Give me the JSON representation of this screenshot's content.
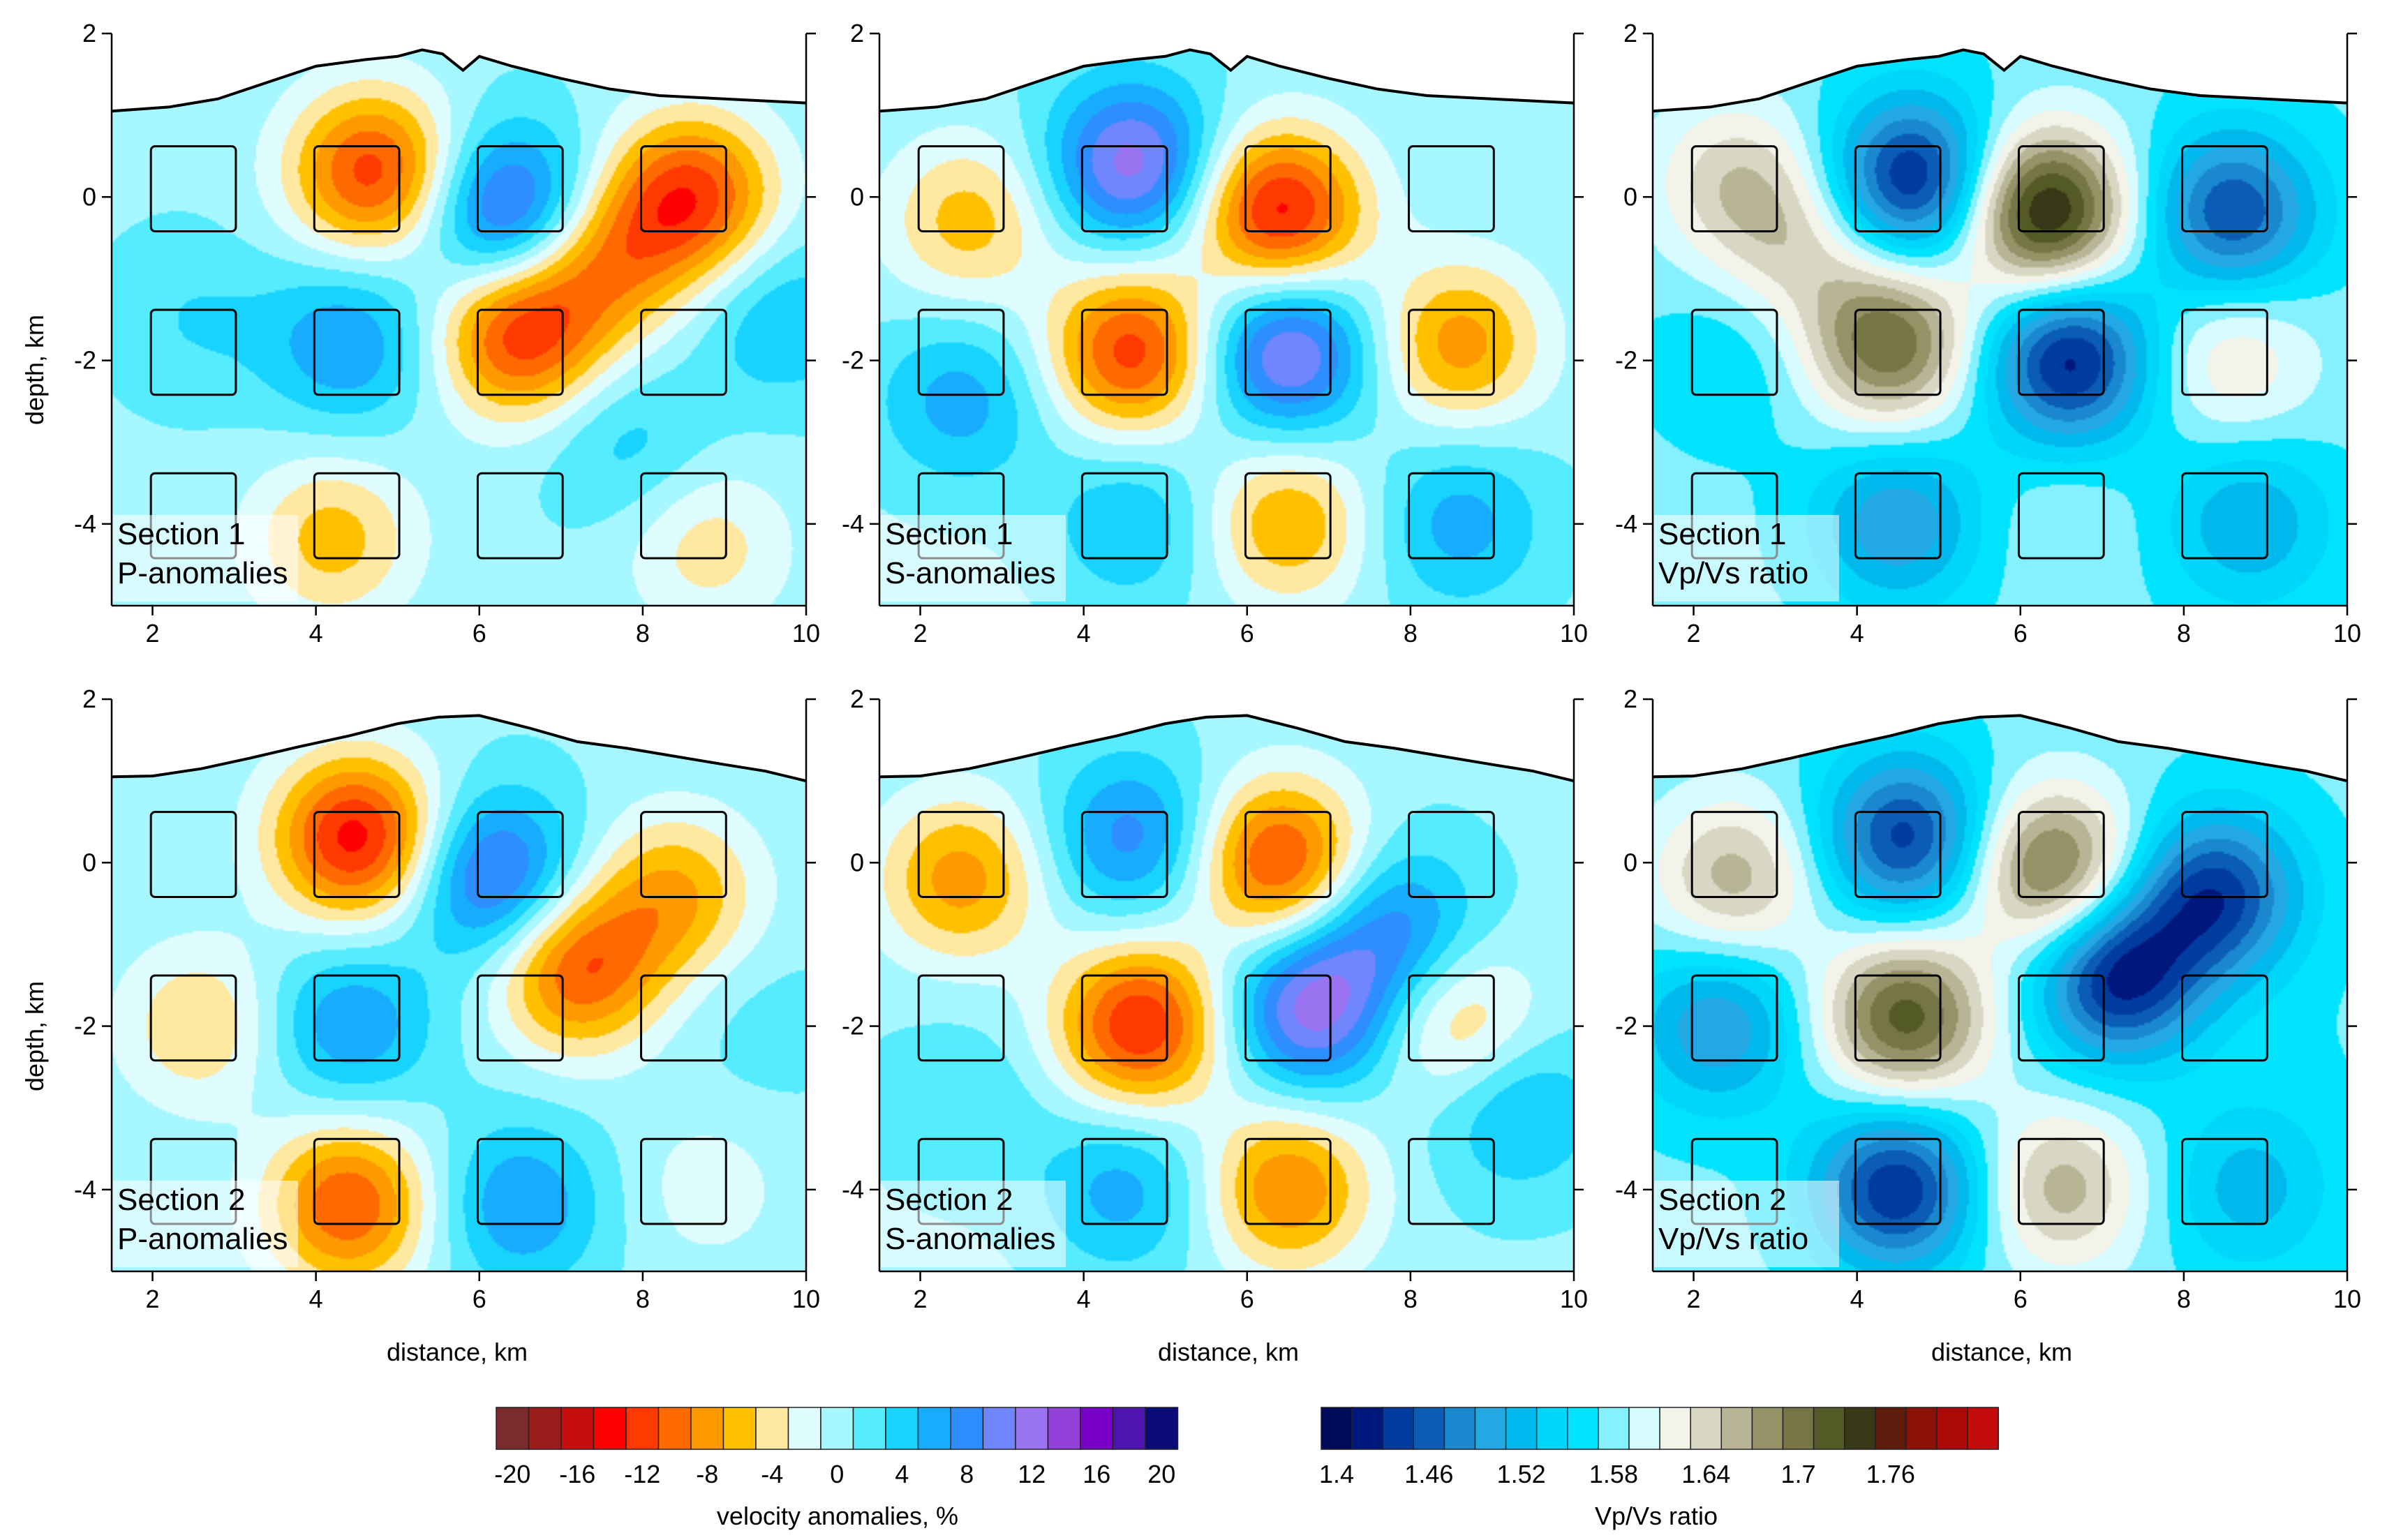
{
  "chart_data": [
    {
      "type": "heatmap",
      "title_lines": [
        "Section 1",
        "P-anomalies"
      ],
      "variable": "velocity anomalies, %",
      "xlabel": "",
      "ylabel": "depth, km",
      "xlim": [
        1.5,
        10
      ],
      "ylim": [
        -5,
        2
      ],
      "xticks": [
        2,
        4,
        6,
        8,
        10
      ],
      "yticks": [
        2,
        0,
        -2,
        -4
      ],
      "anomalies": [
        {
          "x": 4.7,
          "y": 0.3,
          "v": -12
        },
        {
          "x": 6.4,
          "y": -0.2,
          "v": 12
        },
        {
          "x": 6.5,
          "y": -1.7,
          "v": -12
        },
        {
          "x": 8.6,
          "y": 0,
          "v": -12
        },
        {
          "x": 7.5,
          "y": -0.8,
          "v": -8
        },
        {
          "x": 4.4,
          "y": -1.8,
          "v": 7
        },
        {
          "x": 2.5,
          "y": -1.5,
          "v": 3
        },
        {
          "x": 4.2,
          "y": -4.2,
          "v": -6
        },
        {
          "x": 8.8,
          "y": -4.3,
          "v": -4
        },
        {
          "x": 9.7,
          "y": -1.5,
          "v": 5
        },
        {
          "x": 7.8,
          "y": -3,
          "v": 4
        }
      ]
    },
    {
      "type": "heatmap",
      "title_lines": [
        "Section 1",
        "S-anomalies"
      ],
      "variable": "velocity anomalies, %",
      "xlabel": "",
      "ylabel": "",
      "xlim": [
        1.5,
        10
      ],
      "ylim": [
        -5,
        2
      ],
      "xticks": [
        2,
        4,
        6,
        8,
        10
      ],
      "yticks": [
        2,
        0,
        -2,
        -4
      ],
      "anomalies": [
        {
          "x": 4.6,
          "y": 0.4,
          "v": 12
        },
        {
          "x": 6.4,
          "y": -0.2,
          "v": -14
        },
        {
          "x": 4.6,
          "y": -1.9,
          "v": -12
        },
        {
          "x": 6.5,
          "y": -1.9,
          "v": 12
        },
        {
          "x": 8.6,
          "y": -1.8,
          "v": -8
        },
        {
          "x": 2.6,
          "y": -0.3,
          "v": -6
        },
        {
          "x": 2.5,
          "y": -2.5,
          "v": 6
        },
        {
          "x": 6.5,
          "y": -4,
          "v": -7
        },
        {
          "x": 8.6,
          "y": -4,
          "v": 6
        },
        {
          "x": 4.6,
          "y": -4,
          "v": 5
        }
      ]
    },
    {
      "type": "heatmap",
      "title_lines": [
        "Section 1",
        "Vp/Vs ratio"
      ],
      "variable": "Vp/Vs ratio",
      "xlabel": "",
      "ylabel": "",
      "xlim": [
        1.5,
        10
      ],
      "ylim": [
        -5,
        2
      ],
      "xticks": [
        2,
        4,
        6,
        8,
        10
      ],
      "yticks": [
        2,
        0,
        -2,
        -4
      ],
      "anomalies": [
        {
          "x": 4.7,
          "y": 0.2,
          "v": 1.4
        },
        {
          "x": 6.3,
          "y": -0.2,
          "v": 1.74
        },
        {
          "x": 6.6,
          "y": -2,
          "v": 1.4
        },
        {
          "x": 8.6,
          "y": -0.2,
          "v": 1.43
        },
        {
          "x": 4.4,
          "y": -1.8,
          "v": 1.69
        },
        {
          "x": 2.5,
          "y": 0.2,
          "v": 1.62
        },
        {
          "x": 3.3,
          "y": -0.6,
          "v": 1.61
        },
        {
          "x": 8.6,
          "y": -2,
          "v": 1.61
        },
        {
          "x": 4.5,
          "y": -4,
          "v": 1.47
        },
        {
          "x": 8.8,
          "y": -4,
          "v": 1.49
        },
        {
          "x": 6.5,
          "y": -4,
          "v": 1.57
        },
        {
          "x": 2.5,
          "y": -2,
          "v": 1.53
        }
      ]
    },
    {
      "type": "heatmap",
      "title_lines": [
        "Section 2",
        "P-anomalies"
      ],
      "variable": "velocity anomalies, %",
      "xlabel": "distance, km",
      "ylabel": "depth, km",
      "xlim": [
        1.5,
        10
      ],
      "ylim": [
        -5,
        2
      ],
      "xticks": [
        2,
        4,
        6,
        8,
        10
      ],
      "yticks": [
        2,
        0,
        -2,
        -4
      ],
      "anomalies": [
        {
          "x": 4.5,
          "y": 0.3,
          "v": -14
        },
        {
          "x": 6.2,
          "y": -0.2,
          "v": 11
        },
        {
          "x": 7.2,
          "y": -1.3,
          "v": -11
        },
        {
          "x": 8.4,
          "y": -0.4,
          "v": -7
        },
        {
          "x": 4.4,
          "y": -2,
          "v": 7
        },
        {
          "x": 2.6,
          "y": -2,
          "v": -5
        },
        {
          "x": 4.4,
          "y": -4.2,
          "v": -11
        },
        {
          "x": 6.5,
          "y": -4.2,
          "v": 7
        },
        {
          "x": 8.8,
          "y": -4,
          "v": -2
        },
        {
          "x": 9.5,
          "y": -2,
          "v": 2
        }
      ]
    },
    {
      "type": "heatmap",
      "title_lines": [
        "Section 2",
        "S-anomalies"
      ],
      "variable": "velocity anomalies, %",
      "xlabel": "distance, km",
      "ylabel": "",
      "xlim": [
        1.5,
        10
      ],
      "ylim": [
        -5,
        2
      ],
      "xticks": [
        2,
        4,
        6,
        8,
        10
      ],
      "yticks": [
        2,
        0,
        -2,
        -4
      ],
      "anomalies": [
        {
          "x": 4.6,
          "y": 0.3,
          "v": 8
        },
        {
          "x": 6.4,
          "y": 0,
          "v": -12
        },
        {
          "x": 4.7,
          "y": -2,
          "v": -13
        },
        {
          "x": 6.8,
          "y": -1.8,
          "v": 12
        },
        {
          "x": 7.8,
          "y": -0.8,
          "v": 8
        },
        {
          "x": 2.5,
          "y": -0.2,
          "v": -8
        },
        {
          "x": 8.6,
          "y": -2,
          "v": -6
        },
        {
          "x": 6.5,
          "y": -4,
          "v": -9
        },
        {
          "x": 4.5,
          "y": -4,
          "v": 6
        },
        {
          "x": 2.5,
          "y": -3,
          "v": 3
        },
        {
          "x": 9.3,
          "y": -3,
          "v": 6
        }
      ]
    },
    {
      "type": "heatmap",
      "title_lines": [
        "Section 2",
        "Vp/Vs ratio"
      ],
      "variable": "Vp/Vs ratio",
      "xlabel": "distance, km",
      "ylabel": "",
      "xlim": [
        1.5,
        10
      ],
      "ylim": [
        -5,
        2
      ],
      "xticks": [
        2,
        4,
        6,
        8,
        10
      ],
      "yticks": [
        2,
        0,
        -2,
        -4
      ],
      "anomalies": [
        {
          "x": 4.6,
          "y": 0.3,
          "v": 1.42
        },
        {
          "x": 6.4,
          "y": -0.1,
          "v": 1.69
        },
        {
          "x": 7.2,
          "y": -1.4,
          "v": 1.4
        },
        {
          "x": 8.4,
          "y": -0.4,
          "v": 1.42
        },
        {
          "x": 4.6,
          "y": -1.9,
          "v": 1.7
        },
        {
          "x": 2.5,
          "y": -0.2,
          "v": 1.64
        },
        {
          "x": 4.5,
          "y": -4,
          "v": 1.41
        },
        {
          "x": 6.5,
          "y": -4,
          "v": 1.64
        },
        {
          "x": 8.8,
          "y": -4,
          "v": 1.5
        },
        {
          "x": 2.3,
          "y": -2,
          "v": 1.47
        },
        {
          "x": 9.4,
          "y": -2.5,
          "v": 1.55
        }
      ]
    }
  ],
  "topography": {
    "section1": [
      [
        1.5,
        1.05
      ],
      [
        2.2,
        1.1
      ],
      [
        2.8,
        1.2
      ],
      [
        3.4,
        1.4
      ],
      [
        4.0,
        1.6
      ],
      [
        4.6,
        1.68
      ],
      [
        5.0,
        1.72
      ],
      [
        5.3,
        1.8
      ],
      [
        5.55,
        1.75
      ],
      [
        5.8,
        1.55
      ],
      [
        6.0,
        1.72
      ],
      [
        6.4,
        1.6
      ],
      [
        7.0,
        1.45
      ],
      [
        7.6,
        1.32
      ],
      [
        8.2,
        1.24
      ],
      [
        9.0,
        1.2
      ],
      [
        10.0,
        1.15
      ]
    ],
    "section2": [
      [
        1.5,
        1.05
      ],
      [
        2.0,
        1.06
      ],
      [
        2.6,
        1.15
      ],
      [
        3.2,
        1.28
      ],
      [
        3.8,
        1.42
      ],
      [
        4.4,
        1.55
      ],
      [
        5.0,
        1.7
      ],
      [
        5.5,
        1.78
      ],
      [
        6.0,
        1.8
      ],
      [
        6.6,
        1.65
      ],
      [
        7.2,
        1.48
      ],
      [
        7.8,
        1.4
      ],
      [
        8.4,
        1.3
      ],
      [
        9.0,
        1.2
      ],
      [
        9.5,
        1.12
      ],
      [
        10.0,
        1.0
      ]
    ]
  },
  "study_boxes_x_km": [
    2.5,
    4.5,
    6.5,
    8.5
  ],
  "study_boxes_y_km": [
    0.1,
    -1.9,
    -3.9
  ],
  "colorbars": {
    "velocity": {
      "label": "velocity anomalies, %",
      "tick_labels": [
        "-20",
        "-16",
        "-12",
        "-8",
        "-4",
        "0",
        "4",
        "8",
        "12",
        "16",
        "20"
      ],
      "colors": [
        "#7b2b2b",
        "#9b1b1b",
        "#c80d0d",
        "#ff0000",
        "#ff3a00",
        "#ff6a00",
        "#ff9900",
        "#ffc000",
        "#ffe8a0",
        "#dffcff",
        "#a6f7ff",
        "#55ecff",
        "#19d3ff",
        "#18acff",
        "#2e8dff",
        "#6f86ff",
        "#9a73f0",
        "#9141d8",
        "#7a00c8",
        "#4d14b0",
        "#0b0b78"
      ]
    },
    "vpvs": {
      "label": "Vp/Vs ratio",
      "tick_labels": [
        "1.4",
        "1.46",
        "1.52",
        "1.58",
        "1.64",
        "1.7",
        "1.76"
      ],
      "colors": [
        "#000a5a",
        "#00187e",
        "#003ca0",
        "#0a5cb4",
        "#1a88cf",
        "#23a8e4",
        "#00b8ec",
        "#00d5fa",
        "#00e3ff",
        "#85f1ff",
        "#d5fbff",
        "#f2f4ea",
        "#d9d6c4",
        "#b8b596",
        "#969268",
        "#757545",
        "#545a25",
        "#383716",
        "#5e1a0a",
        "#8b1005",
        "#ac0808",
        "#c40a0a"
      ]
    }
  }
}
